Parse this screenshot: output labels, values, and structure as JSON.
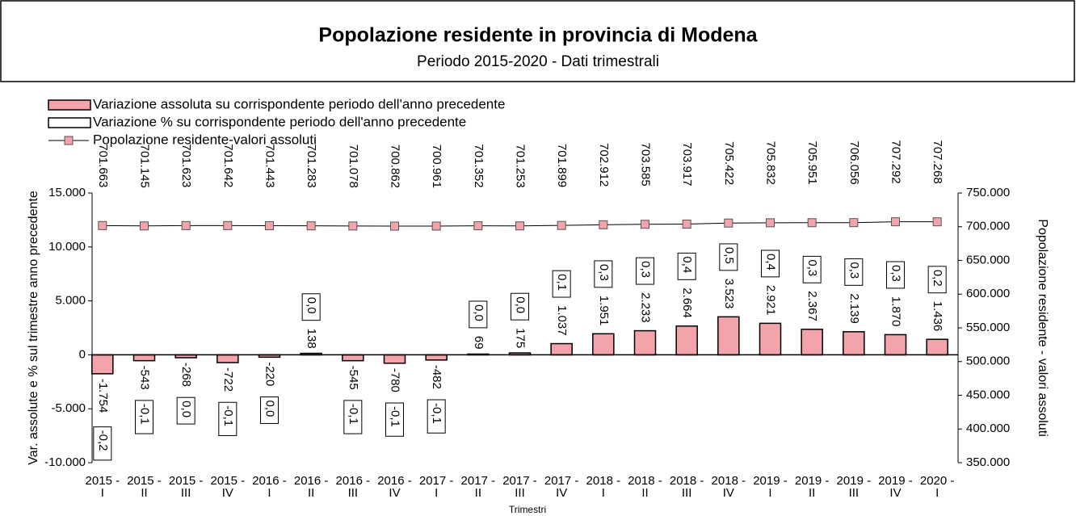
{
  "chart_data": {
    "type": "bar",
    "title": "Popolazione residente in provincia di Modena",
    "subtitle": "Periodo 2015-2020 - Dati trimestrali",
    "x_label": "Trimestri",
    "y_label": "Var. assolute e % sul trimestre anno precedente",
    "y2_label": "Popolazione residente - valori assoluti",
    "categories": [
      "2015 - I",
      "2015 - II",
      "2015 - III",
      "2015 - IV",
      "2016 - I",
      "2016 - II",
      "2016 - III",
      "2016 - IV",
      "2017 - I",
      "2017 - II",
      "2017 - III",
      "2017 - IV",
      "2018 - I",
      "2018 - II",
      "2018 - III",
      "2018 - IV",
      "2019 - I",
      "2019 - II",
      "2019 - III",
      "2019 - IV",
      "2020 - I"
    ],
    "series": [
      {
        "name": "Variazione assoluta su corrispondente periodo dell'anno precedente",
        "type": "bar",
        "color": "#f2a4aa",
        "values": [
          -1754,
          -543,
          -268,
          -722,
          -220,
          138,
          -545,
          -780,
          -482,
          69,
          175,
          1037,
          1951,
          2233,
          2664,
          3523,
          2921,
          2367,
          2139,
          1870,
          1436
        ],
        "value_labels": [
          "-1.754",
          "-543",
          "-268",
          "-722",
          "-220",
          "138",
          "-545",
          "-780",
          "-482",
          "69",
          "175",
          "1.037",
          "1.951",
          "2.233",
          "2.664",
          "3.523",
          "2.921",
          "2.367",
          "2.139",
          "1.870",
          "1.436"
        ]
      },
      {
        "name": "Variazione % su corrispondente periodo dell'anno precedente",
        "type": "bar",
        "color": "#ffffff",
        "values": [
          -0.2,
          -0.1,
          0.0,
          -0.1,
          0.0,
          0.0,
          -0.1,
          -0.1,
          -0.1,
          0.0,
          0.0,
          0.1,
          0.3,
          0.3,
          0.4,
          0.5,
          0.4,
          0.3,
          0.3,
          0.3,
          0.2
        ],
        "value_labels": [
          "-0,2",
          "-0,1",
          "0,0",
          "-0,1",
          "0,0",
          "0,0",
          "-0,1",
          "-0,1",
          "-0,1",
          "0,0",
          "0,0",
          "0,1",
          "0,3",
          "0,3",
          "0,4",
          "0,5",
          "0,4",
          "0,3",
          "0,3",
          "0,3",
          "0,2"
        ]
      },
      {
        "name": "Popolazione residente-valori assoluti",
        "type": "line",
        "axis": "y2",
        "color": "#f2a4aa",
        "values": [
          701663,
          701145,
          701623,
          701642,
          701443,
          701283,
          701078,
          700862,
          700961,
          701352,
          701253,
          701899,
          702912,
          703585,
          703917,
          705422,
          705832,
          705951,
          706056,
          707292,
          707268
        ],
        "value_labels": [
          "701.663",
          "701.145",
          "701.623",
          "701.642",
          "701.443",
          "701.283",
          "701.078",
          "700.862",
          "700.961",
          "701.352",
          "701.253",
          "701.899",
          "702.912",
          "703.585",
          "703.917",
          "705.422",
          "705.832",
          "705.951",
          "706.056",
          "707.292",
          "707.268"
        ]
      }
    ],
    "ylim": [
      -10000,
      15000
    ],
    "yticks": [
      {
        "value": -10000,
        "label": "-10.000"
      },
      {
        "value": -5000,
        "label": "-5.000"
      },
      0,
      {
        "value": 5000,
        "label": "5.000"
      },
      {
        "value": 10000,
        "label": "10.000"
      },
      {
        "value": 15000,
        "label": "15.000"
      }
    ],
    "y2lim": [
      350000,
      750000
    ],
    "y2ticks": [
      {
        "value": 350000,
        "label": "350.000"
      },
      {
        "value": 400000,
        "label": "400.000"
      },
      {
        "value": 450000,
        "label": "450.000"
      },
      {
        "value": 500000,
        "label": "500.000"
      },
      {
        "value": 550000,
        "label": "550.000"
      },
      {
        "value": 600000,
        "label": "600.000"
      },
      {
        "value": 650000,
        "label": "650.000"
      },
      {
        "value": 700000,
        "label": "700.000"
      },
      {
        "value": 750000,
        "label": "750.000"
      }
    ],
    "legend": "top-left",
    "grid": false
  }
}
